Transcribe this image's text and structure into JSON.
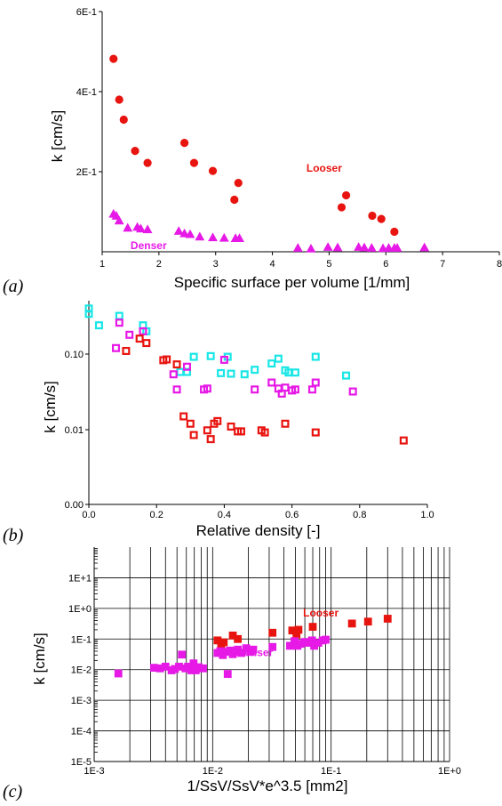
{
  "colors": {
    "red": "#e8140f",
    "magenta": "#e619e6",
    "cyan": "#19e6e6"
  },
  "chart_data": [
    {
      "type": "scatter",
      "panel_label": "(a)",
      "xlabel": "Specific surface per volume [1/mm]",
      "ylabel": "k  [cm/s]",
      "xlim": [
        1,
        8
      ],
      "ylim": [
        0,
        0.6
      ],
      "xticks": [
        1,
        2,
        3,
        4,
        5,
        6,
        7,
        8
      ],
      "xtick_labels": [
        "1",
        "2",
        "3",
        "4",
        "5",
        "6",
        "7",
        "8"
      ],
      "yticks": [
        0.2,
        0.4,
        0.6
      ],
      "ytick_labels": [
        "2E-1",
        "4E-1",
        "6E-1"
      ],
      "grid": false,
      "annotations": [
        {
          "text": "Looser",
          "x": 4.6,
          "y": 0.2,
          "color": "#e8140f"
        },
        {
          "text": "Denser",
          "x": 1.5,
          "y": 0.007,
          "color": "#e619e6"
        }
      ],
      "series": [
        {
          "marker": "circle",
          "color": "#e8140f",
          "x": [
            1.2,
            1.3,
            1.38,
            1.58,
            1.8,
            2.45,
            2.62,
            2.95,
            3.33,
            3.4,
            5.22,
            5.3,
            5.76,
            5.92,
            6.15
          ],
          "y": [
            0.482,
            0.38,
            0.33,
            0.252,
            0.222,
            0.272,
            0.222,
            0.202,
            0.13,
            0.172,
            0.111,
            0.141,
            0.09,
            0.082,
            0.05
          ]
        },
        {
          "marker": "triangle",
          "color": "#e619e6",
          "x": [
            1.2,
            1.25,
            1.3,
            1.45,
            1.62,
            1.68,
            1.8,
            2.35,
            2.45,
            2.55,
            2.72,
            2.95,
            3.15,
            3.35,
            3.42,
            4.45,
            4.68,
            4.98,
            5.15,
            5.52,
            5.62,
            5.75,
            5.95,
            6.05,
            6.15,
            6.2,
            6.68
          ],
          "y": [
            0.095,
            0.09,
            0.078,
            0.06,
            0.062,
            0.058,
            0.056,
            0.052,
            0.046,
            0.044,
            0.038,
            0.036,
            0.035,
            0.034,
            0.034,
            0.01,
            0.008,
            0.012,
            0.011,
            0.012,
            0.011,
            0.01,
            0.009,
            0.01,
            0.01,
            0.01,
            0.011
          ]
        }
      ]
    },
    {
      "type": "scatter",
      "panel_label": "(b)",
      "xlabel": "Relative density [-]",
      "ylabel": "k  [cm/s]",
      "xlim": [
        0,
        1
      ],
      "xticks": [
        0,
        0.2,
        0.4,
        0.6,
        0.8,
        1.0
      ],
      "xtick_labels": [
        "0.0",
        "0.2",
        "0.4",
        "0.6",
        "0.8",
        "1.0"
      ],
      "ytick_labels": [
        "0.00",
        "0.01",
        "0.10"
      ],
      "grid": false,
      "series": [
        {
          "marker": "open-square",
          "color": "#19e6e6",
          "x": [
            0.0,
            0.0,
            0.03,
            0.09,
            0.16,
            0.17,
            0.27,
            0.29,
            0.31,
            0.36,
            0.39,
            0.41,
            0.42,
            0.46,
            0.49,
            0.54,
            0.56,
            0.58,
            0.59,
            0.61,
            0.67,
            0.76
          ],
          "y": [
            0.4,
            0.34,
            0.24,
            0.32,
            0.24,
            0.2,
            0.058,
            0.058,
            0.092,
            0.094,
            0.056,
            0.092,
            0.055,
            0.054,
            0.062,
            0.075,
            0.087,
            0.061,
            0.057,
            0.057,
            0.092,
            0.052
          ]
        },
        {
          "marker": "open-square",
          "color": "#e619e6",
          "x": [
            0.08,
            0.09,
            0.12,
            0.16,
            0.25,
            0.26,
            0.29,
            0.34,
            0.35,
            0.4,
            0.49,
            0.54,
            0.56,
            0.57,
            0.58,
            0.6,
            0.61,
            0.66,
            0.67,
            0.78
          ],
          "y": [
            0.12,
            0.26,
            0.18,
            0.2,
            0.054,
            0.034,
            0.068,
            0.034,
            0.035,
            0.084,
            0.034,
            0.042,
            0.035,
            0.03,
            0.036,
            0.033,
            0.034,
            0.034,
            0.042,
            0.032
          ]
        },
        {
          "marker": "open-square",
          "color": "#e8140f",
          "x": [
            0.11,
            0.15,
            0.17,
            0.22,
            0.23,
            0.26,
            0.28,
            0.3,
            0.31,
            0.35,
            0.36,
            0.37,
            0.38,
            0.42,
            0.44,
            0.45,
            0.51,
            0.52,
            0.58,
            0.67,
            0.93
          ],
          "y": [
            0.11,
            0.16,
            0.14,
            0.083,
            0.085,
            0.073,
            0.015,
            0.012,
            0.0085,
            0.0098,
            0.0075,
            0.012,
            0.013,
            0.011,
            0.0095,
            0.0095,
            0.0098,
            0.0092,
            0.012,
            0.0092,
            0.0072
          ]
        }
      ]
    },
    {
      "type": "scatter",
      "panel_label": "(c)",
      "xlabel": "1/SsV/SsV*e^3.5 [mm2]",
      "ylabel": "k  [cm/s]",
      "xscale": "log",
      "yscale": "log",
      "xlim": [
        0.001,
        1
      ],
      "ylim": [
        1e-05,
        100
      ],
      "xtick_labels": [
        "1E-3",
        "1E-2",
        "1E-1",
        "1E+0"
      ],
      "ytick_labels": [
        "1E-5",
        "1E-4",
        "1E-3",
        "1E-2",
        "1E-1",
        "1E+0",
        "1E+1"
      ],
      "grid": true,
      "annotations": [
        {
          "text": "Looser",
          "x": 0.058,
          "y": 0.55,
          "color": "#e8140f"
        },
        {
          "text": "Denser",
          "x": 0.016,
          "y": 0.028,
          "color": "#e619e6"
        }
      ],
      "series": [
        {
          "marker": "square",
          "color": "#e8140f",
          "x": [
            0.011,
            0.0118,
            0.0124,
            0.0148,
            0.0163,
            0.032,
            0.047,
            0.051,
            0.053,
            0.07,
            0.15,
            0.205,
            0.3
          ],
          "y": [
            0.09,
            0.066,
            0.078,
            0.13,
            0.1,
            0.16,
            0.19,
            0.14,
            0.2,
            0.25,
            0.32,
            0.37,
            0.46
          ]
        },
        {
          "marker": "square",
          "color": "#e619e6",
          "x": [
            0.0016,
            0.0032,
            0.0036,
            0.004,
            0.0045,
            0.0048,
            0.0052,
            0.0055,
            0.0059,
            0.0062,
            0.0066,
            0.0069,
            0.0072,
            0.0076,
            0.0083,
            0.011,
            0.0116,
            0.0122,
            0.0128,
            0.0134,
            0.014,
            0.0148,
            0.0156,
            0.0163,
            0.0175,
            0.0192,
            0.021,
            0.022,
            0.032,
            0.045,
            0.049,
            0.052,
            0.055,
            0.06,
            0.064,
            0.069,
            0.072,
            0.078,
            0.085,
            0.09
          ],
          "y": [
            0.0075,
            0.0115,
            0.011,
            0.0125,
            0.0095,
            0.0105,
            0.0125,
            0.031,
            0.011,
            0.0125,
            0.0095,
            0.016,
            0.0095,
            0.012,
            0.011,
            0.035,
            0.04,
            0.03,
            0.038,
            0.0072,
            0.042,
            0.032,
            0.038,
            0.045,
            0.035,
            0.05,
            0.038,
            0.045,
            0.055,
            0.06,
            0.085,
            0.06,
            0.07,
            0.08,
            0.075,
            0.09,
            0.06,
            0.075,
            0.09,
            0.095
          ]
        }
      ]
    }
  ]
}
